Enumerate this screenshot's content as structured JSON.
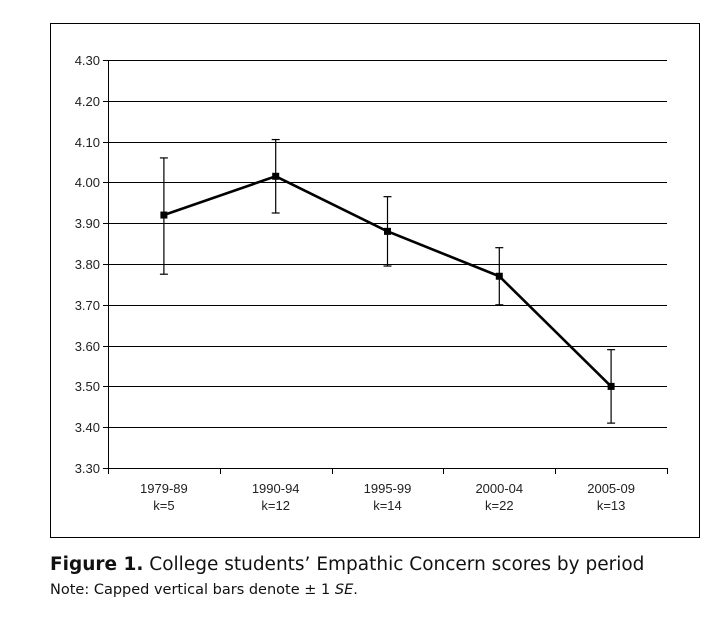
{
  "chart_data": {
    "type": "line",
    "title": "",
    "xlabel": "",
    "ylabel": "",
    "ylim": [
      3.3,
      4.3
    ],
    "y_ticks": [
      "3.30",
      "3.40",
      "3.50",
      "3.60",
      "3.70",
      "3.80",
      "3.90",
      "4.00",
      "4.10",
      "4.20",
      "4.30"
    ],
    "grid": "horizontal",
    "categories": [
      {
        "period": "1979-89",
        "k": "k=5"
      },
      {
        "period": "1990-94",
        "k": "k=12"
      },
      {
        "period": "1995-99",
        "k": "k=14"
      },
      {
        "period": "2000-04",
        "k": "k=22"
      },
      {
        "period": "2005-09",
        "k": "k=13"
      }
    ],
    "series": [
      {
        "name": "Empathic Concern",
        "values": [
          3.92,
          4.015,
          3.88,
          3.77,
          3.5
        ],
        "error_upper": [
          4.06,
          4.105,
          3.965,
          3.84,
          3.59
        ],
        "error_lower": [
          3.775,
          3.925,
          3.795,
          3.7,
          3.41
        ],
        "color": "#000000"
      }
    ]
  },
  "caption": {
    "figure_label": "Figure 1.",
    "title": "College students’ Empathic Concern scores by period",
    "note_prefix": "Note: Capped vertical bars denote ± 1 ",
    "note_se": "SE",
    "note_suffix": "."
  }
}
